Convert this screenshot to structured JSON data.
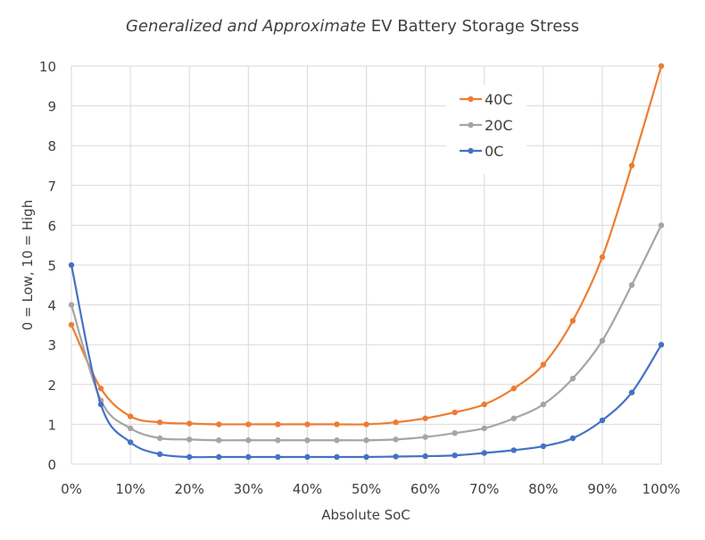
{
  "chart_data": {
    "type": "line",
    "title_italic": "Generalized and Approximate",
    "title_rest": " EV Battery Storage Stress",
    "xlabel": "Absolute SoC",
    "ylabel": "0 = Low, 10 = High",
    "x": [
      0,
      5,
      10,
      15,
      20,
      25,
      30,
      35,
      40,
      45,
      50,
      55,
      60,
      65,
      70,
      75,
      80,
      85,
      90,
      95,
      100
    ],
    "xticks": [
      "0%",
      "10%",
      "20%",
      "30%",
      "40%",
      "50%",
      "60%",
      "70%",
      "80%",
      "90%",
      "100%"
    ],
    "yticks": [
      "0",
      "1",
      "2",
      "3",
      "4",
      "5",
      "6",
      "7",
      "8",
      "9",
      "10"
    ],
    "xlim": [
      0,
      100
    ],
    "ylim": [
      0,
      10
    ],
    "grid": true,
    "legend_position": "top-right-inside",
    "series": [
      {
        "name": "40C",
        "color": "#ED7D31",
        "values": [
          3.5,
          1.9,
          1.2,
          1.05,
          1.02,
          1.0,
          1.0,
          1.0,
          1.0,
          1.0,
          1.0,
          1.05,
          1.15,
          1.3,
          1.5,
          1.9,
          2.5,
          3.6,
          5.2,
          7.5,
          10
        ]
      },
      {
        "name": "20C",
        "color": "#A5A5A5",
        "values": [
          4.0,
          1.6,
          0.9,
          0.65,
          0.62,
          0.6,
          0.6,
          0.6,
          0.6,
          0.6,
          0.6,
          0.62,
          0.68,
          0.78,
          0.9,
          1.15,
          1.5,
          2.15,
          3.1,
          4.5,
          6.0
        ]
      },
      {
        "name": "0C",
        "color": "#4472C4",
        "values": [
          5.0,
          1.5,
          0.55,
          0.25,
          0.18,
          0.18,
          0.18,
          0.18,
          0.18,
          0.18,
          0.18,
          0.19,
          0.2,
          0.22,
          0.28,
          0.35,
          0.45,
          0.65,
          1.1,
          1.8,
          3.0
        ]
      }
    ]
  }
}
